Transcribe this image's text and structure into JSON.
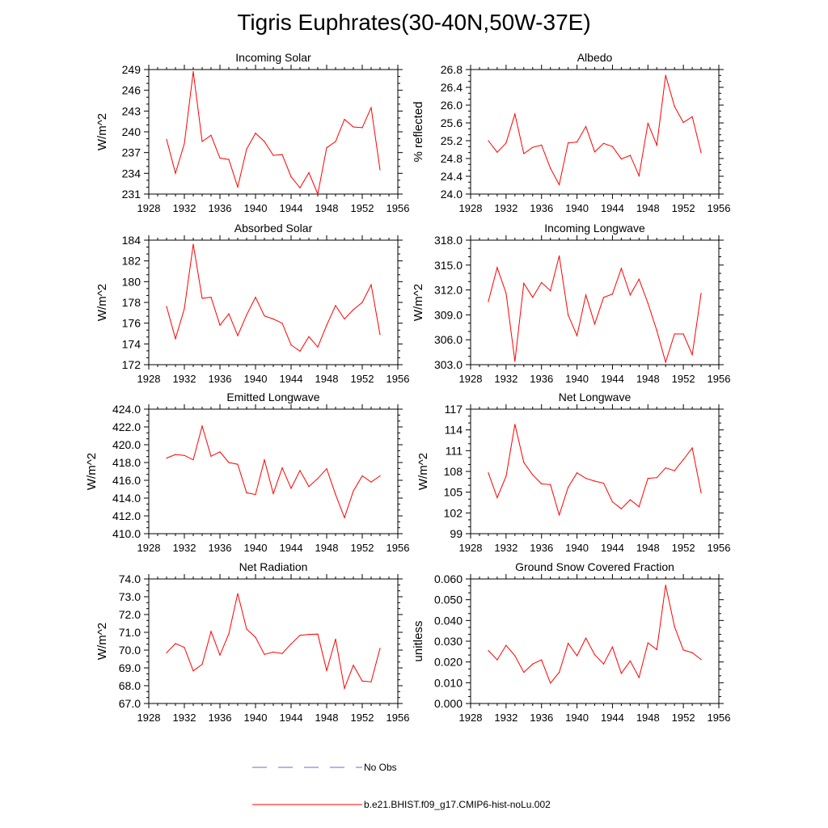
{
  "figure": {
    "title": "Tigris Euphrates(30-40N,50W-37E)"
  },
  "legend": {
    "items": [
      {
        "label": "No Obs",
        "color": "#6a6ad6",
        "style": "dashed"
      },
      {
        "label": "b.e21.BHIST.f09_g17.CMIP6-hist-noLu.002",
        "color": "#ff0000",
        "style": "solid"
      }
    ]
  },
  "chart_data": [
    {
      "type": "line",
      "title": "Incoming Solar",
      "xlabel": "",
      "ylabel": "W/m^2",
      "xlim": [
        1928,
        1956
      ],
      "ylim": [
        231,
        249
      ],
      "xticks": [
        1928,
        1932,
        1936,
        1940,
        1944,
        1948,
        1952,
        1956
      ],
      "xtick_labels": [
        "1928",
        "1932",
        "1936",
        "1940",
        "1944",
        "1948",
        "1952",
        "1956"
      ],
      "yticks": [
        231,
        234,
        237,
        240,
        243,
        246,
        249
      ],
      "ytick_labels": [
        "231",
        "234",
        "237",
        "240",
        "243",
        "246",
        "249"
      ],
      "series": [
        {
          "name": "b.e21.BHIST.f09_g17.CMIP6-hist-noLu.002",
          "color": "#ff0000",
          "x": [
            1930,
            1931,
            1932,
            1933,
            1934,
            1935,
            1936,
            1937,
            1938,
            1939,
            1940,
            1941,
            1942,
            1943,
            1944,
            1945,
            1946,
            1947,
            1948,
            1949,
            1950,
            1951,
            1952,
            1953,
            1954
          ],
          "y": [
            238.9,
            234.0,
            238.3,
            248.7,
            238.6,
            239.5,
            236.2,
            236.0,
            232.0,
            237.5,
            239.8,
            238.6,
            236.6,
            236.7,
            233.5,
            231.9,
            234.1,
            231.0,
            237.7,
            238.6,
            241.8,
            240.7,
            240.6,
            243.5,
            234.5
          ]
        }
      ]
    },
    {
      "type": "line",
      "title": "Albedo",
      "xlabel": "",
      "ylabel": "% reflected",
      "xlim": [
        1928,
        1956
      ],
      "ylim": [
        24.0,
        26.8
      ],
      "xticks": [
        1928,
        1932,
        1936,
        1940,
        1944,
        1948,
        1952,
        1956
      ],
      "xtick_labels": [
        "1928",
        "1932",
        "1936",
        "1940",
        "1944",
        "1948",
        "1952",
        "1956"
      ],
      "yticks": [
        24.0,
        24.4,
        24.8,
        25.2,
        25.6,
        26.0,
        26.4,
        26.8
      ],
      "ytick_labels": [
        "24.0",
        "24.4",
        "24.8",
        "25.2",
        "25.6",
        "26.0",
        "26.4",
        "26.8"
      ],
      "series": [
        {
          "name": "b.e21.BHIST.f09_g17.CMIP6-hist-noLu.002",
          "color": "#ff0000",
          "x": [
            1930,
            1931,
            1932,
            1933,
            1934,
            1935,
            1936,
            1937,
            1938,
            1939,
            1940,
            1941,
            1942,
            1943,
            1944,
            1945,
            1946,
            1947,
            1948,
            1949,
            1950,
            1951,
            1952,
            1953,
            1954
          ],
          "y": [
            25.2,
            24.94,
            25.15,
            25.8,
            24.91,
            25.05,
            25.1,
            24.58,
            24.21,
            25.15,
            25.17,
            25.52,
            24.95,
            25.14,
            25.07,
            24.79,
            24.87,
            24.41,
            25.59,
            25.1,
            26.67,
            25.97,
            25.61,
            25.74,
            24.93
          ]
        }
      ]
    },
    {
      "type": "line",
      "title": "Absorbed Solar",
      "xlabel": "",
      "ylabel": "W/m^2",
      "xlim": [
        1928,
        1956
      ],
      "ylim": [
        172,
        184
      ],
      "xticks": [
        1928,
        1932,
        1936,
        1940,
        1944,
        1948,
        1952,
        1956
      ],
      "xtick_labels": [
        "1928",
        "1932",
        "1936",
        "1940",
        "1944",
        "1948",
        "1952",
        "1956"
      ],
      "yticks": [
        172,
        174,
        176,
        178,
        180,
        182,
        184
      ],
      "ytick_labels": [
        "172",
        "174",
        "176",
        "178",
        "180",
        "182",
        "184"
      ],
      "series": [
        {
          "name": "b.e21.BHIST.f09_g17.CMIP6-hist-noLu.002",
          "color": "#ff0000",
          "x": [
            1930,
            1931,
            1932,
            1933,
            1934,
            1935,
            1936,
            1937,
            1938,
            1939,
            1940,
            1941,
            1942,
            1943,
            1944,
            1945,
            1946,
            1947,
            1948,
            1949,
            1950,
            1951,
            1952,
            1953,
            1954
          ],
          "y": [
            177.6,
            174.5,
            177.4,
            183.6,
            178.4,
            178.5,
            175.8,
            176.9,
            174.8,
            176.8,
            178.5,
            176.7,
            176.4,
            176.0,
            173.9,
            173.3,
            174.7,
            173.7,
            175.8,
            177.7,
            176.4,
            177.3,
            178.0,
            179.7,
            174.9
          ]
        }
      ]
    },
    {
      "type": "line",
      "title": "Incoming Longwave",
      "xlabel": "",
      "ylabel": "W/m^2",
      "xlim": [
        1928,
        1956
      ],
      "ylim": [
        303.0,
        318.0
      ],
      "xticks": [
        1928,
        1932,
        1936,
        1940,
        1944,
        1948,
        1952,
        1956
      ],
      "xtick_labels": [
        "1928",
        "1932",
        "1936",
        "1940",
        "1944",
        "1948",
        "1952",
        "1956"
      ],
      "yticks": [
        303.0,
        306.0,
        309.0,
        312.0,
        315.0,
        318.0
      ],
      "ytick_labels": [
        "303.0",
        "306.0",
        "309.0",
        "312.0",
        "315.0",
        "318.0"
      ],
      "series": [
        {
          "name": "b.e21.BHIST.f09_g17.CMIP6-hist-noLu.002",
          "color": "#ff0000",
          "x": [
            1930,
            1931,
            1932,
            1933,
            1934,
            1935,
            1936,
            1937,
            1938,
            1939,
            1940,
            1941,
            1942,
            1943,
            1944,
            1945,
            1946,
            1947,
            1948,
            1949,
            1950,
            1951,
            1952,
            1953,
            1954
          ],
          "y": [
            310.6,
            314.7,
            311.6,
            303.4,
            312.8,
            311.1,
            312.9,
            311.9,
            316.1,
            309.0,
            306.5,
            311.4,
            307.9,
            311.1,
            311.5,
            314.6,
            311.4,
            313.3,
            310.4,
            307.1,
            303.3,
            306.7,
            306.7,
            304.2,
            311.6
          ]
        }
      ]
    },
    {
      "type": "line",
      "title": "Emitted Longwave",
      "xlabel": "",
      "ylabel": "W/m^2",
      "xlim": [
        1928,
        1956
      ],
      "ylim": [
        410.0,
        424.0
      ],
      "xticks": [
        1928,
        1932,
        1936,
        1940,
        1944,
        1948,
        1952,
        1956
      ],
      "xtick_labels": [
        "1928",
        "1932",
        "1936",
        "1940",
        "1944",
        "1948",
        "1952",
        "1956"
      ],
      "yticks": [
        410.0,
        412.0,
        414.0,
        416.0,
        418.0,
        420.0,
        422.0,
        424.0
      ],
      "ytick_labels": [
        "410.0",
        "412.0",
        "414.0",
        "416.0",
        "418.0",
        "420.0",
        "422.0",
        "424.0"
      ],
      "series": [
        {
          "name": "b.e21.BHIST.f09_g17.CMIP6-hist-noLu.002",
          "color": "#ff0000",
          "x": [
            1930,
            1931,
            1932,
            1933,
            1934,
            1935,
            1936,
            1937,
            1938,
            1939,
            1940,
            1941,
            1942,
            1943,
            1944,
            1945,
            1946,
            1947,
            1948,
            1949,
            1950,
            1951,
            1952,
            1953,
            1954
          ],
          "y": [
            418.5,
            418.9,
            418.8,
            418.3,
            422.1,
            418.7,
            419.2,
            418.0,
            417.8,
            414.6,
            414.4,
            418.3,
            414.5,
            417.4,
            415.1,
            417.1,
            415.3,
            416.2,
            417.3,
            414.4,
            411.8,
            414.8,
            416.5,
            415.8,
            416.5
          ]
        }
      ]
    },
    {
      "type": "line",
      "title": "Net Longwave",
      "xlabel": "",
      "ylabel": "W/m^2",
      "xlim": [
        1928,
        1956
      ],
      "ylim": [
        99,
        117
      ],
      "xticks": [
        1928,
        1932,
        1936,
        1940,
        1944,
        1948,
        1952,
        1956
      ],
      "xtick_labels": [
        "1928",
        "1932",
        "1936",
        "1940",
        "1944",
        "1948",
        "1952",
        "1956"
      ],
      "yticks": [
        99,
        102,
        105,
        108,
        111,
        114,
        117
      ],
      "ytick_labels": [
        "99",
        "102",
        "105",
        "108",
        "111",
        "114",
        "117"
      ],
      "series": [
        {
          "name": "b.e21.BHIST.f09_g17.CMIP6-hist-noLu.002",
          "color": "#ff0000",
          "x": [
            1930,
            1931,
            1932,
            1933,
            1934,
            1935,
            1936,
            1937,
            1938,
            1939,
            1940,
            1941,
            1942,
            1943,
            1944,
            1945,
            1946,
            1947,
            1948,
            1949,
            1950,
            1951,
            1952,
            1953,
            1954
          ],
          "y": [
            107.8,
            104.2,
            107.3,
            114.8,
            109.3,
            107.5,
            106.2,
            106.1,
            101.7,
            105.7,
            107.8,
            107.0,
            106.6,
            106.3,
            103.6,
            102.6,
            103.9,
            102.9,
            107.0,
            107.1,
            108.5,
            108.1,
            109.7,
            111.4,
            104.9
          ]
        }
      ]
    },
    {
      "type": "line",
      "title": "Net Radiation",
      "xlabel": "",
      "ylabel": "W/m^2",
      "xlim": [
        1928,
        1956
      ],
      "ylim": [
        67.0,
        74.0
      ],
      "xticks": [
        1928,
        1932,
        1936,
        1940,
        1944,
        1948,
        1952,
        1956
      ],
      "xtick_labels": [
        "1928",
        "1932",
        "1936",
        "1940",
        "1944",
        "1948",
        "1952",
        "1956"
      ],
      "yticks": [
        67.0,
        68.0,
        69.0,
        70.0,
        71.0,
        72.0,
        73.0,
        74.0
      ],
      "ytick_labels": [
        "67.0",
        "68.0",
        "69.0",
        "70.0",
        "71.0",
        "72.0",
        "73.0",
        "74.0"
      ],
      "series": [
        {
          "name": "b.e21.BHIST.f09_g17.CMIP6-hist-noLu.002",
          "color": "#ff0000",
          "x": [
            1930,
            1931,
            1932,
            1933,
            1934,
            1935,
            1936,
            1937,
            1938,
            1939,
            1940,
            1941,
            1942,
            1943,
            1944,
            1945,
            1946,
            1947,
            1948,
            1949,
            1950,
            1951,
            1952,
            1953,
            1954
          ],
          "y": [
            69.85,
            70.37,
            70.15,
            68.83,
            69.2,
            71.05,
            69.72,
            70.92,
            73.18,
            71.18,
            70.72,
            69.76,
            69.89,
            69.81,
            70.35,
            70.83,
            70.88,
            70.9,
            68.85,
            70.62,
            67.85,
            69.15,
            68.26,
            68.22,
            70.1
          ]
        }
      ]
    },
    {
      "type": "line",
      "title": "Ground Snow Covered Fraction",
      "xlabel": "",
      "ylabel": "unitless",
      "xlim": [
        1928,
        1956
      ],
      "ylim": [
        0.0,
        0.06
      ],
      "xticks": [
        1928,
        1932,
        1936,
        1940,
        1944,
        1948,
        1952,
        1956
      ],
      "xtick_labels": [
        "1928",
        "1932",
        "1936",
        "1940",
        "1944",
        "1948",
        "1952",
        "1956"
      ],
      "yticks": [
        0.0,
        0.01,
        0.02,
        0.03,
        0.04,
        0.05,
        0.06
      ],
      "ytick_labels": [
        "0.000",
        "0.010",
        "0.020",
        "0.030",
        "0.040",
        "0.050",
        "0.060"
      ],
      "series": [
        {
          "name": "b.e21.BHIST.f09_g17.CMIP6-hist-noLu.002",
          "color": "#ff0000",
          "x": [
            1930,
            1931,
            1932,
            1933,
            1934,
            1935,
            1936,
            1937,
            1938,
            1939,
            1940,
            1941,
            1942,
            1943,
            1944,
            1945,
            1946,
            1947,
            1948,
            1949,
            1950,
            1951,
            1952,
            1953,
            1954
          ],
          "y": [
            0.0255,
            0.021,
            0.028,
            0.023,
            0.015,
            0.019,
            0.021,
            0.0098,
            0.015,
            0.029,
            0.023,
            0.0315,
            0.0235,
            0.019,
            0.0272,
            0.0145,
            0.0205,
            0.0125,
            0.0292,
            0.026,
            0.057,
            0.037,
            0.0258,
            0.0245,
            0.0212
          ]
        }
      ]
    }
  ]
}
